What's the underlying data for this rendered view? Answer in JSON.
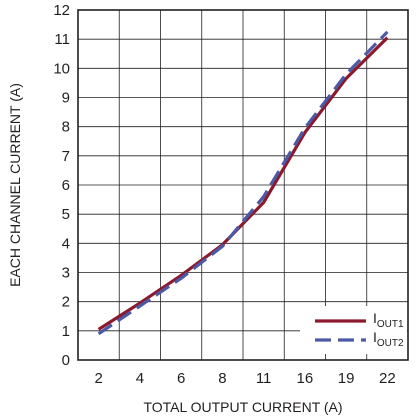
{
  "chart_data": {
    "type": "line",
    "xlabel": "TOTAL OUTPUT CURRENT (A)",
    "ylabel": "EACH CHANNEL CURRENT (A)",
    "categories": [
      "2",
      "4",
      "6",
      "8",
      "11",
      "16",
      "19",
      "22"
    ],
    "yticks": [
      "0",
      "1",
      "2",
      "3",
      "4",
      "5",
      "6",
      "7",
      "8",
      "9",
      "10",
      "11",
      "12"
    ],
    "ylim": [
      0,
      12
    ],
    "grid": true,
    "legend_position": "bottom-right",
    "series": [
      {
        "name_main": "I",
        "name_sub": "OUT1",
        "color": "#8b1a2e",
        "style": "solid",
        "points": [
          [
            0,
            1.05
          ],
          [
            1,
            1.95
          ],
          [
            2,
            2.9
          ],
          [
            3,
            3.95
          ],
          [
            4,
            5.4
          ],
          [
            5,
            7.8
          ],
          [
            6,
            9.65
          ],
          [
            7,
            11.05
          ]
        ]
      },
      {
        "name_main": "I",
        "name_sub": "OUT2",
        "color": "#4c5aa6",
        "style": "dashed",
        "points": [
          [
            0,
            0.9
          ],
          [
            1,
            1.85
          ],
          [
            2,
            2.8
          ],
          [
            3,
            3.9
          ],
          [
            4,
            5.6
          ],
          [
            5,
            7.95
          ],
          [
            6,
            9.8
          ],
          [
            7,
            11.25
          ]
        ]
      }
    ]
  }
}
